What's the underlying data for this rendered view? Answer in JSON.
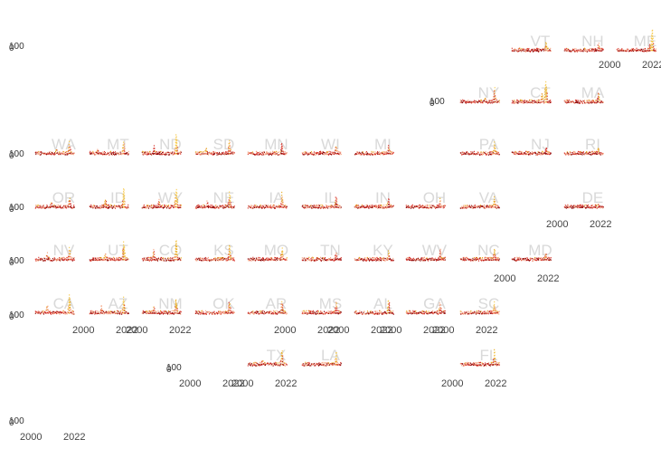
{
  "chart_data": {
    "type": "scatter",
    "layout": "small-multiples-us-state-grid",
    "x_tick_labels": [
      "2000",
      "2022"
    ],
    "y_tick_labels": [
      "0",
      "100"
    ],
    "xlim": [
      1990,
      2026
    ],
    "ylim": [
      0,
      100
    ],
    "point_colors": [
      "#8b0000",
      "#d73027",
      "#f4a582",
      "#e6a817",
      "#f7c948"
    ],
    "panels": [
      {
        "state": "ME",
        "row": 0,
        "col": 11,
        "peaks": [
          [
            2021,
            85
          ],
          [
            2019,
            30
          ]
        ]
      },
      {
        "state": "VT",
        "row": 0,
        "col": 9,
        "peaks": [
          [
            2020,
            40
          ],
          [
            2013,
            20
          ]
        ]
      },
      {
        "state": "NH",
        "row": 0,
        "col": 10,
        "peaks": [
          [
            2020,
            35
          ]
        ]
      },
      {
        "state": "NY",
        "row": 1,
        "col": 8,
        "peaks": [
          [
            2020,
            60
          ],
          [
            2013,
            25
          ]
        ]
      },
      {
        "state": "CT",
        "row": 1,
        "col": 9,
        "peaks": [
          [
            2020,
            90
          ],
          [
            2017,
            40
          ]
        ]
      },
      {
        "state": "MA",
        "row": 1,
        "col": 10,
        "peaks": [
          [
            2020,
            45
          ]
        ]
      },
      {
        "state": "WA",
        "row": 2,
        "col": 0,
        "peaks": [
          [
            2020,
            50
          ],
          [
            2010,
            25
          ]
        ]
      },
      {
        "state": "MT",
        "row": 2,
        "col": 1,
        "peaks": [
          [
            2020,
            60
          ],
          [
            2000,
            30
          ]
        ]
      },
      {
        "state": "ND",
        "row": 2,
        "col": 2,
        "peaks": [
          [
            2020,
            75
          ],
          [
            2003,
            35
          ]
        ]
      },
      {
        "state": "SD",
        "row": 2,
        "col": 3,
        "peaks": [
          [
            2020,
            55
          ],
          [
            2002,
            30
          ]
        ]
      },
      {
        "state": "MN",
        "row": 2,
        "col": 4,
        "peaks": [
          [
            2020,
            50
          ]
        ]
      },
      {
        "state": "WI",
        "row": 2,
        "col": 5,
        "peaks": [
          [
            2020,
            45
          ]
        ]
      },
      {
        "state": "MI",
        "row": 2,
        "col": 6,
        "peaks": [
          [
            2020,
            40
          ]
        ]
      },
      {
        "state": "PA",
        "row": 2,
        "col": 8,
        "peaks": [
          [
            2020,
            45
          ]
        ]
      },
      {
        "state": "NJ",
        "row": 2,
        "col": 9,
        "peaks": [
          [
            2020,
            35
          ]
        ]
      },
      {
        "state": "RI",
        "row": 2,
        "col": 10,
        "peaks": [
          [
            2020,
            30
          ]
        ]
      },
      {
        "state": "OR",
        "row": 3,
        "col": 0,
        "peaks": [
          [
            2020,
            45
          ],
          [
            2006,
            30
          ]
        ]
      },
      {
        "state": "ID",
        "row": 3,
        "col": 1,
        "peaks": [
          [
            2020,
            70
          ],
          [
            2006,
            40
          ]
        ]
      },
      {
        "state": "WY",
        "row": 3,
        "col": 2,
        "peaks": [
          [
            2020,
            80
          ],
          [
            2007,
            35
          ]
        ]
      },
      {
        "state": "NE",
        "row": 3,
        "col": 3,
        "peaks": [
          [
            2020,
            65
          ],
          [
            2003,
            30
          ]
        ]
      },
      {
        "state": "IA",
        "row": 3,
        "col": 4,
        "peaks": [
          [
            2020,
            55
          ]
        ]
      },
      {
        "state": "IL",
        "row": 3,
        "col": 5,
        "peaks": [
          [
            2020,
            50
          ]
        ]
      },
      {
        "state": "IN",
        "row": 3,
        "col": 6,
        "peaks": [
          [
            2020,
            40
          ]
        ]
      },
      {
        "state": "OH",
        "row": 3,
        "col": 7,
        "peaks": [
          [
            2020,
            35
          ]
        ]
      },
      {
        "state": "VA",
        "row": 3,
        "col": 8,
        "peaks": [
          [
            2020,
            40
          ]
        ]
      },
      {
        "state": "DE",
        "row": 3,
        "col": 10,
        "peaks": [
          [
            2020,
            20
          ]
        ]
      },
      {
        "state": "NV",
        "row": 4,
        "col": 0,
        "peaks": [
          [
            2020,
            55
          ],
          [
            2003,
            30
          ]
        ]
      },
      {
        "state": "UT",
        "row": 4,
        "col": 1,
        "peaks": [
          [
            2020,
            70
          ],
          [
            2006,
            35
          ]
        ]
      },
      {
        "state": "CO",
        "row": 4,
        "col": 2,
        "peaks": [
          [
            2020,
            75
          ],
          [
            2003,
            45
          ]
        ]
      },
      {
        "state": "KS",
        "row": 4,
        "col": 3,
        "peaks": [
          [
            2020,
            60
          ]
        ]
      },
      {
        "state": "MO",
        "row": 4,
        "col": 4,
        "peaks": [
          [
            2020,
            50
          ]
        ]
      },
      {
        "state": "TN",
        "row": 4,
        "col": 5,
        "peaks": [
          [
            2020,
            45
          ]
        ]
      },
      {
        "state": "KY",
        "row": 4,
        "col": 6,
        "peaks": [
          [
            2020,
            40
          ]
        ]
      },
      {
        "state": "WV",
        "row": 4,
        "col": 7,
        "peaks": [
          [
            2020,
            45
          ]
        ]
      },
      {
        "state": "NC",
        "row": 4,
        "col": 8,
        "peaks": [
          [
            2020,
            50
          ]
        ]
      },
      {
        "state": "MD",
        "row": 4,
        "col": 9,
        "peaks": [
          [
            2020,
            35
          ]
        ]
      },
      {
        "state": "CA",
        "row": 5,
        "col": 0,
        "peaks": [
          [
            2020,
            70
          ],
          [
            2003,
            40
          ]
        ]
      },
      {
        "state": "AZ",
        "row": 5,
        "col": 1,
        "peaks": [
          [
            2020,
            60
          ],
          [
            2003,
            35
          ]
        ]
      },
      {
        "state": "NM",
        "row": 5,
        "col": 2,
        "peaks": [
          [
            2020,
            65
          ],
          [
            2003,
            30
          ]
        ]
      },
      {
        "state": "OK",
        "row": 5,
        "col": 3,
        "peaks": [
          [
            2020,
            55
          ]
        ]
      },
      {
        "state": "AR",
        "row": 5,
        "col": 4,
        "peaks": [
          [
            2020,
            50
          ]
        ]
      },
      {
        "state": "MS",
        "row": 5,
        "col": 5,
        "peaks": [
          [
            2020,
            45
          ]
        ]
      },
      {
        "state": "AL",
        "row": 5,
        "col": 6,
        "peaks": [
          [
            2020,
            60
          ]
        ]
      },
      {
        "state": "GA",
        "row": 5,
        "col": 7,
        "peaks": [
          [
            2020,
            55
          ]
        ]
      },
      {
        "state": "SC",
        "row": 5,
        "col": 8,
        "peaks": [
          [
            2020,
            45
          ]
        ]
      },
      {
        "state": "TX",
        "row": 6,
        "col": 4,
        "peaks": [
          [
            2020,
            60
          ],
          [
            2005,
            30
          ]
        ]
      },
      {
        "state": "LA",
        "row": 6,
        "col": 5,
        "peaks": [
          [
            2020,
            50
          ]
        ]
      },
      {
        "state": "FL",
        "row": 6,
        "col": 8,
        "peaks": [
          [
            2020,
            55
          ]
        ]
      }
    ]
  }
}
